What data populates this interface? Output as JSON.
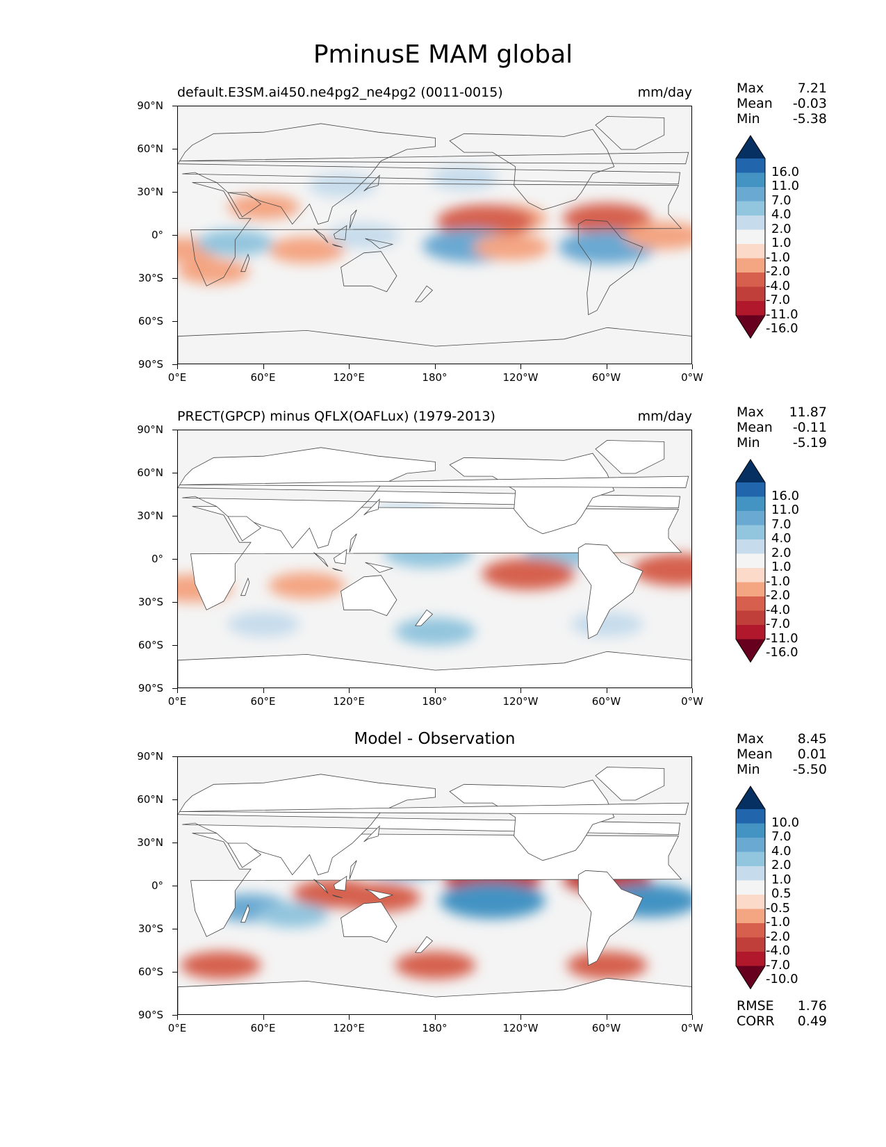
{
  "figure": {
    "title": "PminusE MAM global"
  },
  "axes": {
    "lat_ticks": [
      "90°N",
      "60°N",
      "30°N",
      "0°",
      "30°S",
      "60°S",
      "90°S"
    ],
    "lon_ticks": [
      "0°E",
      "60°E",
      "120°E",
      "180°",
      "120°W",
      "60°W",
      "0°W"
    ]
  },
  "panels": [
    {
      "id": "test",
      "title_left": "default.E3SM.ai450.ne4pg2_ne4pg2 (0011-0015)",
      "title_right": "mm/day",
      "title_center": "",
      "stats": {
        "max_label": "Max",
        "max": "7.21",
        "mean_label": "Mean",
        "mean": "-0.03",
        "min_label": "Min",
        "min": "-5.38"
      },
      "colorbar_labels": [
        "16.0",
        "11.0",
        "7.0",
        "4.0",
        "2.0",
        "1.0",
        "-1.0",
        "-2.0",
        "-4.0",
        "-7.0",
        "-11.0",
        "-16.0"
      ]
    },
    {
      "id": "reference",
      "title_left": "PRECT(GPCP) minus QFLX(OAFLux) (1979-2013)",
      "title_right": "mm/day",
      "title_center": "",
      "stats": {
        "max_label": "Max",
        "max": "11.87",
        "mean_label": "Mean",
        "mean": "-0.11",
        "min_label": "Min",
        "min": "-5.19"
      },
      "colorbar_labels": [
        "16.0",
        "11.0",
        "7.0",
        "4.0",
        "2.0",
        "1.0",
        "-1.0",
        "-2.0",
        "-4.0",
        "-7.0",
        "-11.0",
        "-16.0"
      ]
    },
    {
      "id": "difference",
      "title_left": "",
      "title_right": "",
      "title_center": "Model - Observation",
      "stats": {
        "max_label": "Max",
        "max": "8.45",
        "mean_label": "Mean",
        "mean": "0.01",
        "min_label": "Min",
        "min": "-5.50"
      },
      "colorbar_labels": [
        "10.0",
        "7.0",
        "4.0",
        "2.0",
        "1.0",
        "0.5",
        "-0.5",
        "-1.0",
        "-2.0",
        "-4.0",
        "-7.0",
        "-10.0"
      ],
      "rmse_label": "RMSE",
      "rmse": "1.76",
      "corr_label": "CORR",
      "corr": "0.49"
    }
  ],
  "colors": {
    "colorbar": [
      "#053061",
      "#2166ac",
      "#4393c3",
      "#6aa9d2",
      "#92c5de",
      "#c6dcec",
      "#f4f4f4",
      "#fbdac9",
      "#f4a582",
      "#d6604d",
      "#c13f3a",
      "#b2182b",
      "#67001f"
    ],
    "land": "#ffffff",
    "coast": "#444444"
  },
  "chart_data": [
    {
      "type": "heatmap",
      "title": "default.E3SM.ai450.ne4pg2_ne4pg2 (0011-0015)",
      "units": "mm/day",
      "x": "longitude 0°E to 0°W",
      "y": "latitude 90°S to 90°N",
      "levels": [
        -16,
        -11,
        -7,
        -4,
        -2,
        -1,
        1,
        2,
        4,
        7,
        11,
        16
      ],
      "max": 7.21,
      "mean": -0.03,
      "min": -5.38,
      "features": [
        {
          "lon": 115,
          "lat": 35,
          "value": 1.5
        },
        {
          "lon": 200,
          "lat": 40,
          "value": 1.5
        },
        {
          "lon": 230,
          "lat": 12,
          "value": -3
        },
        {
          "lon": 215,
          "lat": 10,
          "value": -5
        },
        {
          "lon": 300,
          "lat": 12,
          "value": -4
        },
        {
          "lon": 205,
          "lat": -7,
          "value": 5
        },
        {
          "lon": 233,
          "lat": -8,
          "value": -2.5
        },
        {
          "lon": 300,
          "lat": -8,
          "value": 5
        },
        {
          "lon": 90,
          "lat": -10,
          "value": -2.5
        },
        {
          "lon": 60,
          "lat": 20,
          "value": -2
        },
        {
          "lon": 5,
          "lat": -10,
          "value": -2
        },
        {
          "lon": 25,
          "lat": -25,
          "value": -2
        },
        {
          "lon": 40,
          "lat": -5,
          "value": 2.5
        },
        {
          "lon": 130,
          "lat": 0,
          "value": 2
        },
        {
          "lon": 340,
          "lat": 0,
          "value": -3
        }
      ]
    },
    {
      "type": "heatmap",
      "title": "PRECT(GPCP) minus QFLX(OAFLux) (1979-2013)",
      "units": "mm/day",
      "x": "longitude 0°E to 0°W",
      "y": "latitude 90°S to 90°N",
      "levels": [
        -16,
        -11,
        -7,
        -4,
        -2,
        -1,
        1,
        2,
        4,
        7,
        11,
        16
      ],
      "max": 11.87,
      "mean": -0.11,
      "min": -5.19,
      "features": [
        {
          "lon": 160,
          "lat": 30,
          "value": 2
        },
        {
          "lon": 190,
          "lat": 18,
          "value": -2.5
        },
        {
          "lon": 300,
          "lat": 15,
          "value": -3
        },
        {
          "lon": 175,
          "lat": 5,
          "value": 4
        },
        {
          "lon": 270,
          "lat": 5,
          "value": 3
        },
        {
          "lon": 245,
          "lat": -10,
          "value": -4.5
        },
        {
          "lon": 350,
          "lat": -7,
          "value": -4.5
        },
        {
          "lon": 90,
          "lat": -18,
          "value": -2.5
        },
        {
          "lon": 10,
          "lat": -20,
          "value": -3
        },
        {
          "lon": 180,
          "lat": -50,
          "value": 3
        },
        {
          "lon": 300,
          "lat": -45,
          "value": 2
        },
        {
          "lon": 60,
          "lat": -45,
          "value": 2
        }
      ]
    },
    {
      "type": "heatmap",
      "title": "Model - Observation",
      "units": "mm/day",
      "x": "longitude 0°E to 0°W",
      "y": "latitude 90°S to 90°N",
      "levels": [
        -10,
        -7,
        -4,
        -2,
        -1,
        -0.5,
        0.5,
        1,
        2,
        4,
        7,
        10
      ],
      "max": 8.45,
      "mean": 0.01,
      "min": -5.5,
      "rmse": 1.76,
      "corr": 0.49,
      "features": [
        {
          "lon": 160,
          "lat": 15,
          "value": 3
        },
        {
          "lon": 220,
          "lat": 5,
          "value": -5
        },
        {
          "lon": 110,
          "lat": -5,
          "value": -3.5
        },
        {
          "lon": 140,
          "lat": -8,
          "value": -3.5
        },
        {
          "lon": 220,
          "lat": -10,
          "value": 6
        },
        {
          "lon": 300,
          "lat": 5,
          "value": -4
        },
        {
          "lon": 330,
          "lat": -10,
          "value": 5
        },
        {
          "lon": 50,
          "lat": -15,
          "value": 3
        },
        {
          "lon": 80,
          "lat": -20,
          "value": 2
        },
        {
          "lon": 180,
          "lat": -55,
          "value": -3
        },
        {
          "lon": 30,
          "lat": -55,
          "value": -3
        },
        {
          "lon": 300,
          "lat": -55,
          "value": -3
        }
      ]
    }
  ]
}
